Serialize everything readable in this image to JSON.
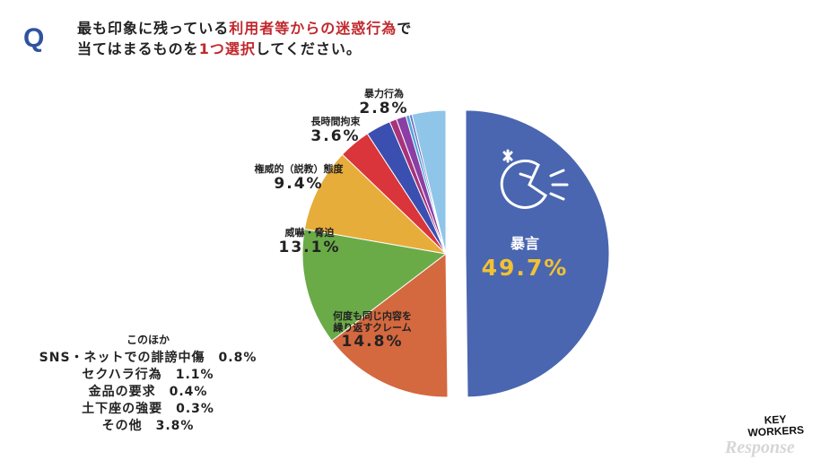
{
  "header": {
    "q_mark": "Q",
    "line1_prefix": "最も印象に残っている",
    "line1_highlight": "利用者等からの迷惑行為",
    "line1_suffix": "で",
    "line2_prefix": "当てはまるものを",
    "line2_highlight": "1つ選択",
    "line2_suffix": "してください。"
  },
  "chart_data": {
    "type": "pie",
    "slices": [
      {
        "name": "暴言",
        "value": 49.7,
        "label": "49.7%",
        "color": "#4a66b0"
      },
      {
        "name": "何度も同じ内容を繰り返すクレーム",
        "value": 14.8,
        "label": "14.8%",
        "color": "#d4683f"
      },
      {
        "name": "威嚇・脅迫",
        "value": 13.1,
        "label": "13.1%",
        "color": "#6aab48"
      },
      {
        "name": "権威的（説教）態度",
        "value": 9.4,
        "label": "9.4%",
        "color": "#e7ad3a"
      },
      {
        "name": "長時間拘束",
        "value": 3.6,
        "label": "3.6%",
        "color": "#d9353a"
      },
      {
        "name": "暴力行為",
        "value": 2.8,
        "label": "2.8%",
        "color": "#3a4fb0"
      },
      {
        "name": "SNS・ネットでの誹謗中傷",
        "value": 0.8,
        "color": "#a8337a"
      },
      {
        "name": "セクハラ行為",
        "value": 1.1,
        "color": "#8a3fa5"
      },
      {
        "name": "金品の要求",
        "value": 0.4,
        "color": "#4fa3d8"
      },
      {
        "name": "土下座の強要",
        "value": 0.3,
        "color": "#6a6fc4"
      },
      {
        "name": "その他",
        "value": 3.8,
        "color": "#8fc5e8"
      }
    ]
  },
  "labels": {
    "boogen_name": "暴言",
    "boogen_val": "49.7%",
    "claim_name_1": "何度も同じ内容を",
    "claim_name_2": "繰り返すクレーム",
    "claim_val": "14.8%",
    "threat_name": "威嚇・脅迫",
    "threat_val": "13.1%",
    "auth_name": "権威的（説教）態度",
    "auth_val": "9.4%",
    "long_name": "長時間拘束",
    "long_val": "3.6%",
    "violence_name": "暴力行為",
    "violence_val": "2.8%"
  },
  "others": {
    "title": "このほか",
    "rows": [
      "SNS・ネットでの誹謗中傷　0.8%",
      "セクハラ行為　1.1%",
      "金品の要求　0.4%",
      "土下座の強要　0.3%",
      "その他　3.8%"
    ]
  },
  "logo": {
    "line1": "KEY",
    "line2": "WORKERS"
  },
  "watermark": "Response"
}
